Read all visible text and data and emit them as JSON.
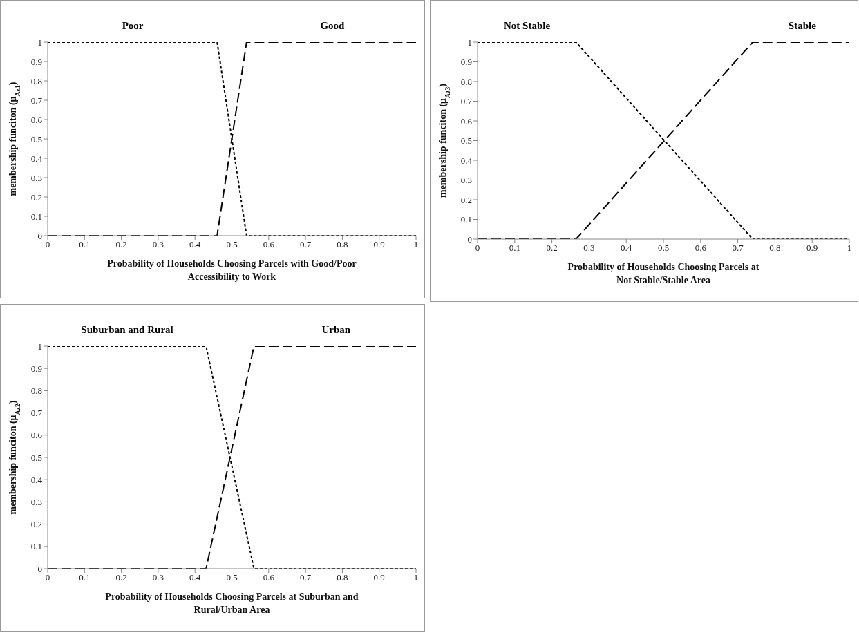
{
  "chart_data": [
    {
      "type": "line",
      "xlabel": "Probability  of Households  Choosing Parcels with  Good/Poor Accessibility to Work",
      "ylabel": "membership  funciton (μ$_{Az1}$)",
      "xlim": [
        0,
        1
      ],
      "ylim": [
        0,
        1
      ],
      "xticks": [
        0,
        0.1,
        0.2,
        0.3,
        0.4,
        0.5,
        0.6,
        0.7,
        0.8,
        0.9,
        1
      ],
      "yticks": [
        0,
        0.1,
        0.2,
        0.3,
        0.4,
        0.5,
        0.6,
        0.7,
        0.8,
        0.9,
        1
      ],
      "grid": false,
      "legend": false,
      "marker": "none",
      "series": [
        {
          "name": "Poor",
          "color": "#000000",
          "line_style": "dotted",
          "x": [
            0,
            0.46,
            0.54,
            1
          ],
          "values": [
            1,
            1,
            0,
            0
          ]
        },
        {
          "name": "Good",
          "color": "#000000",
          "line_style": "dashed",
          "x": [
            0,
            0.46,
            0.54,
            1
          ],
          "values": [
            0,
            0,
            1,
            1
          ]
        }
      ]
    },
    {
      "type": "line",
      "xlabel": "Probability  of Households  Choosing Parcels at Not Stable/Stable Area",
      "ylabel": "membership funciton (μ$_{Az3}$)",
      "xlim": [
        0,
        1
      ],
      "ylim": [
        0,
        1
      ],
      "xticks": [
        0,
        0.1,
        0.2,
        0.3,
        0.4,
        0.5,
        0.6,
        0.7,
        0.8,
        0.9,
        1
      ],
      "yticks": [
        0,
        0.1,
        0.2,
        0.3,
        0.4,
        0.5,
        0.6,
        0.7,
        0.8,
        0.9,
        1
      ],
      "grid": false,
      "legend": false,
      "marker": "none",
      "series": [
        {
          "name": "Not Stable",
          "color": "#000000",
          "line_style": "dotted",
          "x": [
            0,
            0.265,
            0.74,
            1
          ],
          "values": [
            1,
            1,
            0,
            0
          ]
        },
        {
          "name": "Stable",
          "color": "#000000",
          "line_style": "dashed",
          "x": [
            0,
            0.265,
            0.74,
            1
          ],
          "values": [
            0,
            0,
            1,
            1
          ]
        }
      ]
    },
    {
      "type": "line",
      "xlabel": "Probability  of Households  Choosing Parcels at Suburban  and Rural/Urban  Area",
      "ylabel": "membership  funciton  (μ$_{Az2}$)",
      "xlim": [
        0,
        1
      ],
      "ylim": [
        0,
        1
      ],
      "xticks": [
        0,
        0.1,
        0.2,
        0.3,
        0.4,
        0.5,
        0.6,
        0.7,
        0.8,
        0.9,
        1
      ],
      "yticks": [
        0,
        0.1,
        0.2,
        0.3,
        0.4,
        0.5,
        0.6,
        0.7,
        0.8,
        0.9,
        1
      ],
      "grid": false,
      "legend": false,
      "marker": "none",
      "series": [
        {
          "name": "Suburban and Rural",
          "color": "#000000",
          "line_style": "dotted",
          "x": [
            0,
            0.43,
            0.56,
            1
          ],
          "values": [
            1,
            1,
            0,
            0
          ]
        },
        {
          "name": "Urban",
          "color": "#000000",
          "line_style": "dashed",
          "x": [
            0,
            0.43,
            0.56,
            1
          ],
          "values": [
            0,
            0,
            1,
            1
          ]
        }
      ]
    }
  ]
}
